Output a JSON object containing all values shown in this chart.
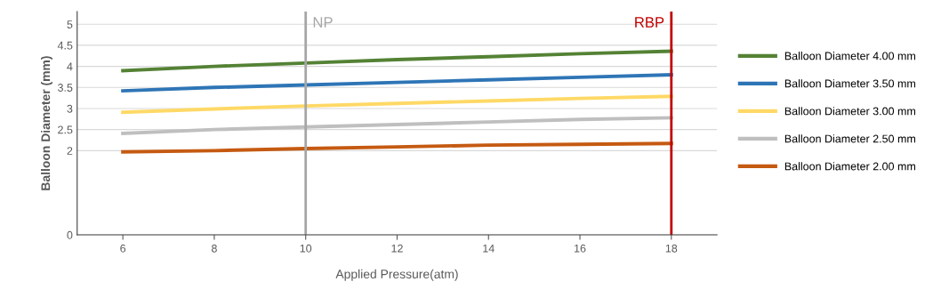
{
  "chart_data": {
    "type": "line",
    "xlabel": "Applied Pressure(atm)",
    "ylabel": "Balloon Diameter (mm)",
    "x": [
      6,
      8,
      10,
      12,
      14,
      16,
      18
    ],
    "series": [
      {
        "name": "Balloon Diameter 4.00 mm",
        "color": "#548235",
        "values": [
          3.9,
          4.0,
          4.08,
          4.16,
          4.23,
          4.3,
          4.36
        ]
      },
      {
        "name": "Balloon Diameter 3.50 mm",
        "color": "#2e75b6",
        "values": [
          3.42,
          3.5,
          3.56,
          3.62,
          3.68,
          3.74,
          3.8
        ]
      },
      {
        "name": "Balloon Diameter 3.00 mm",
        "color": "#ffd966",
        "values": [
          2.91,
          2.99,
          3.06,
          3.12,
          3.18,
          3.24,
          3.29
        ]
      },
      {
        "name": "Balloon Diameter 2.50 mm",
        "color": "#bfbfbf",
        "values": [
          2.41,
          2.5,
          2.56,
          2.62,
          2.68,
          2.74,
          2.78
        ]
      },
      {
        "name": "Balloon Diameter 2.00 mm",
        "color": "#c55a11",
        "values": [
          1.97,
          2.0,
          2.05,
          2.09,
          2.13,
          2.15,
          2.17
        ]
      }
    ],
    "xlim": [
      5,
      19
    ],
    "xticks": [
      6,
      8,
      10,
      12,
      14,
      16,
      18
    ],
    "ylim": [
      0,
      5.3
    ],
    "yticks": [
      0,
      2,
      2.5,
      3,
      3.5,
      4,
      4.5,
      5
    ],
    "ref_lines": [
      {
        "axis": "x",
        "value": 10,
        "label": "NP",
        "color": "#a6a6a6"
      },
      {
        "axis": "x",
        "value": 18,
        "label": "RBP",
        "color": "#c00000"
      }
    ],
    "grid": "y",
    "legend": "right",
    "marker": "none",
    "line_style": "solid"
  }
}
